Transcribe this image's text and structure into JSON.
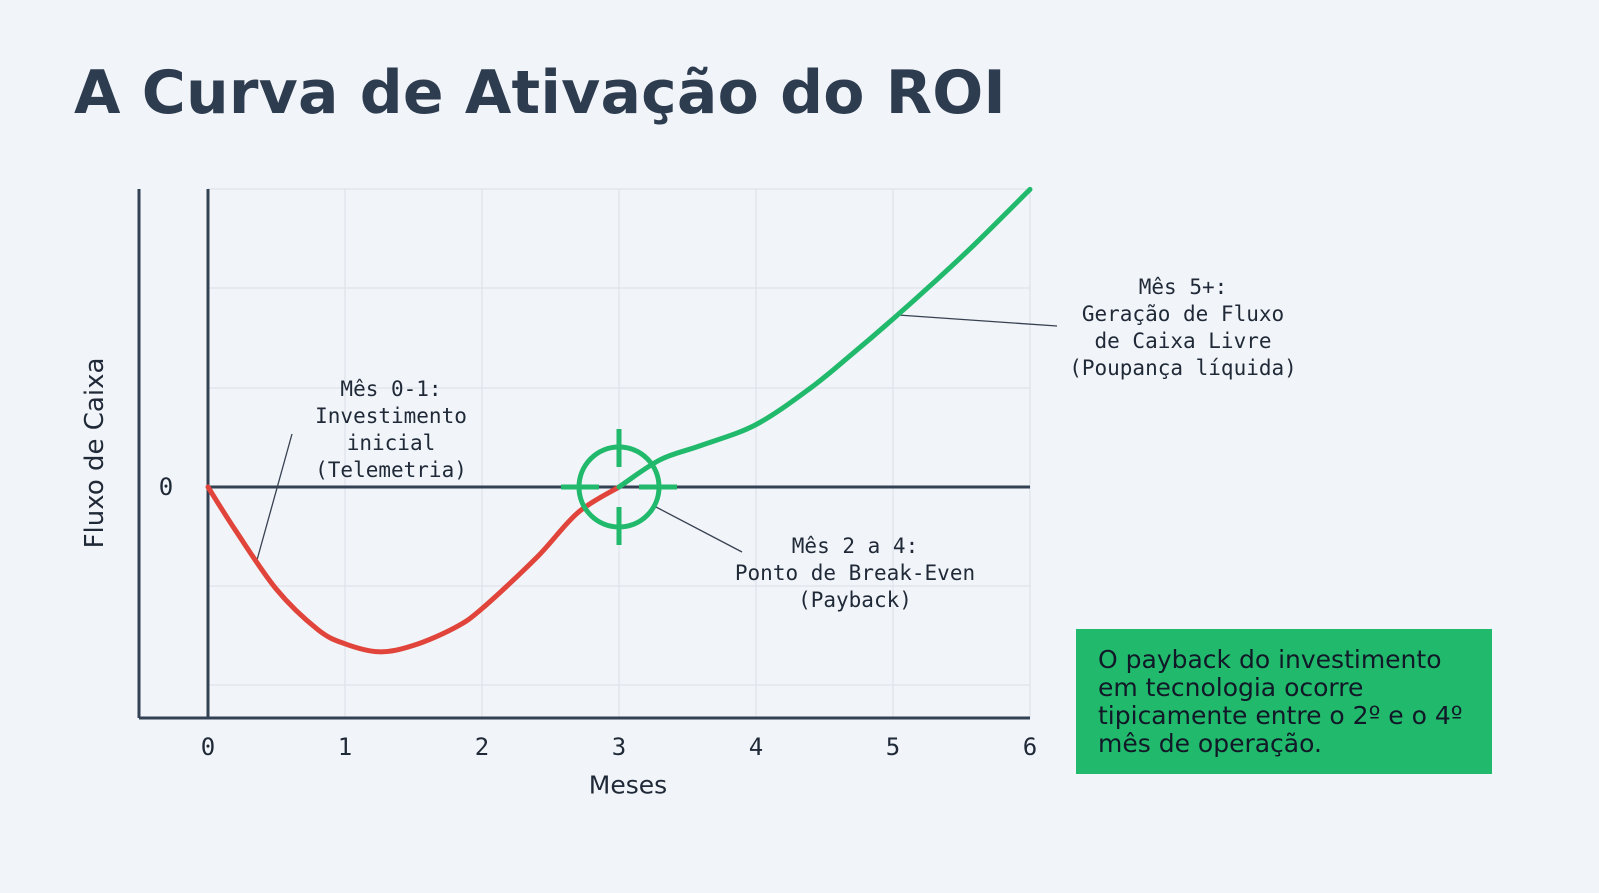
{
  "title": "A Curva de Ativação do ROI",
  "chart_data": {
    "type": "line",
    "xlabel": "Meses",
    "ylabel": "Fluxo de Caixa",
    "xlim": [
      -0.5,
      6
    ],
    "x_ticks": [
      "0",
      "1",
      "2",
      "3",
      "4",
      "5",
      "6"
    ],
    "y_ticks": [
      "0"
    ],
    "grid": true,
    "colors": {
      "negative": "#e0443a",
      "positive": "#21b96b",
      "axis": "#334155"
    },
    "series": [
      {
        "x": [
          0,
          0.2,
          0.5,
          0.8,
          1.0,
          1.25,
          1.5,
          1.8,
          2.0,
          2.4,
          2.7,
          3.0
        ],
        "y": [
          0,
          -0.27,
          -0.64,
          -0.89,
          -0.98,
          -1.03,
          -0.99,
          -0.88,
          -0.76,
          -0.44,
          -0.16,
          0
        ],
        "color": "#e0443a"
      },
      {
        "x": [
          3.0,
          3.3,
          3.6,
          4.0,
          4.4,
          4.7,
          5.0,
          5.3,
          5.6,
          6.0
        ],
        "y": [
          0,
          0.17,
          0.26,
          0.39,
          0.62,
          0.83,
          1.05,
          1.28,
          1.52,
          1.86
        ],
        "color": "#21b96b"
      }
    ],
    "marker": {
      "x": 3,
      "y": 0,
      "type": "crosshair-circle",
      "color": "#21b96b"
    },
    "annotations": [
      {
        "lines": [
          "Mês 0-1:",
          "Investimento",
          "inicial",
          "(Telemetria)"
        ],
        "x": 0.35,
        "y": -0.43
      },
      {
        "lines": [
          "Mês 2 a 4:",
          "Ponto de Break-Even",
          "(Payback)"
        ],
        "x": 3.3,
        "y": -0.12
      },
      {
        "lines": [
          "Mês 5+:",
          "Geração de Fluxo",
          "de Caixa Livre",
          "(Poupança líquida)"
        ],
        "x": 5.05,
        "y": 1.05
      }
    ]
  },
  "note": "O payback do investimento em tecnologia ocorre tipicamente entre o 2º e o 4º mês de operação."
}
